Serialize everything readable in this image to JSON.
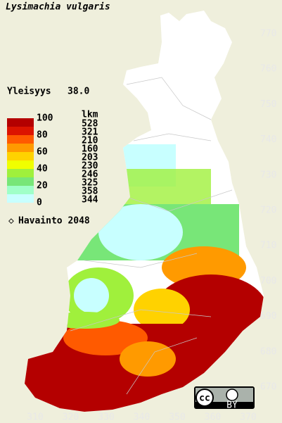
{
  "title": "Lysimachia vulgaris",
  "frequency": {
    "label": "Yleisyys",
    "value": "38.0"
  },
  "legend": {
    "count_header": "lkm",
    "scale_labels": [
      "100",
      "80",
      "60",
      "40",
      "20",
      "0"
    ],
    "classes": [
      {
        "color": "#b40000",
        "count": "528"
      },
      {
        "color": "#dc1400",
        "count": "321"
      },
      {
        "color": "#ff5a00",
        "count": "210"
      },
      {
        "color": "#ff9a00",
        "count": "160"
      },
      {
        "color": "#ffd200",
        "count": "203"
      },
      {
        "color": "#f0ff00",
        "count": "230"
      },
      {
        "color": "#a0f03c",
        "count": "246"
      },
      {
        "color": "#78e678",
        "count": "325"
      },
      {
        "color": "#a0ffc8",
        "count": "358"
      },
      {
        "color": "#c8ffff",
        "count": "344"
      }
    ],
    "observations": "Havainto 2048"
  },
  "axes": {
    "y_labels": [
      "770",
      "760",
      "750",
      "740",
      "730",
      "720",
      "710",
      "700",
      "690",
      "680",
      "670"
    ],
    "x_labels": [
      "310",
      "320",
      "330",
      "340",
      "350",
      "360",
      "370"
    ]
  },
  "badge": {
    "cc": "cc",
    "by": "BY"
  }
}
